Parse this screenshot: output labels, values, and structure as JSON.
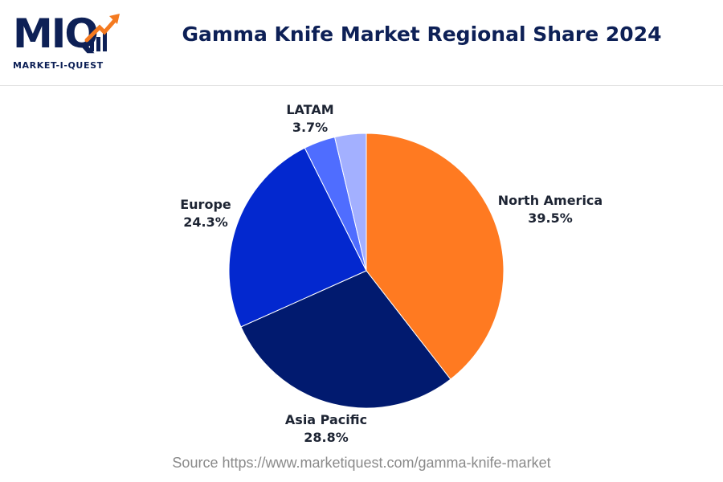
{
  "brand": {
    "logo_text": "MIQ",
    "logo_subtitle": "MARKET-I-QUEST",
    "color": "#0d2056",
    "accent": "#f47a20"
  },
  "chart_data": {
    "type": "pie",
    "title": "Gamma Knife Market Regional Share 2024",
    "start_angle_deg": 0,
    "direction": "clockwise",
    "slices": [
      {
        "name": "North America",
        "value": 39.5,
        "label": "39.5%",
        "color": "#ff7a21"
      },
      {
        "name": "Asia Pacific",
        "value": 28.8,
        "label": "28.8%",
        "color": "#011a6f"
      },
      {
        "name": "Europe",
        "value": 24.3,
        "label": "24.3%",
        "color": "#0328cf"
      },
      {
        "name": "",
        "value": 3.7,
        "label": "",
        "color": "#4f6dff"
      },
      {
        "name": "LATAM",
        "value": 3.7,
        "label": "3.7%",
        "color": "#a3b0ff"
      }
    ]
  },
  "footer": {
    "source": "Source https://www.marketiquest.com/gamma-knife-market"
  }
}
